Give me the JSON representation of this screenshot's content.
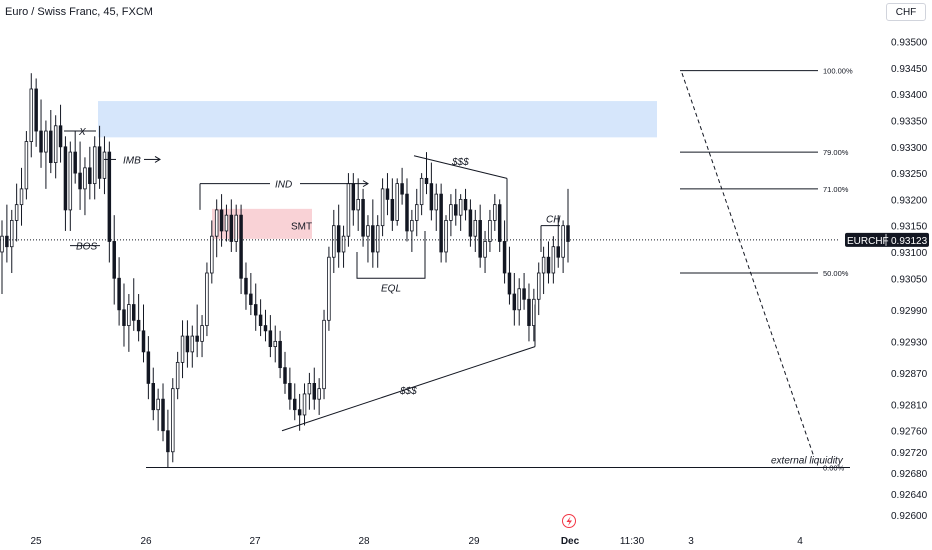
{
  "header": {
    "title": "Euro / Swiss Franc, 45, FXCM",
    "currency_button": "CHF"
  },
  "colors": {
    "up": "#131722",
    "down": "#131722",
    "imbalance_zone": "#d6e6fb",
    "smt_zone": "#f9d2d6",
    "price_tag": "#131722"
  },
  "chart_data": {
    "type": "candlestick",
    "symbol": "EURCHF",
    "last_price": "0.93123",
    "ylim": [
      0.92575,
      0.93545
    ],
    "y_ticks": [
      "0.93500",
      "0.93450",
      "0.93400",
      "0.93350",
      "0.93300",
      "0.93250",
      "0.93200",
      "0.93150",
      "0.93100",
      "0.93050",
      "0.92990",
      "0.92930",
      "0.92870",
      "0.92810",
      "0.92760",
      "0.92720",
      "0.92680",
      "0.92640",
      "0.92600"
    ],
    "x_ticks": [
      "25",
      "26",
      "27",
      "28",
      "29",
      "Dec",
      "11:30",
      "3",
      "4"
    ],
    "fib_levels": [
      {
        "label": "100.00%",
        "value": 0.93445
      },
      {
        "label": "79.00%",
        "value": 0.9329
      },
      {
        "label": "71.00%",
        "value": 0.9322
      },
      {
        "label": "50.00%",
        "value": 0.9306
      },
      {
        "label": "0.00%",
        "value": 0.9269
      }
    ],
    "annotations": {
      "x": "X",
      "imb": "IMB",
      "bos": "BOS",
      "ind": "IND",
      "smt": "SMT",
      "eql": "EQL",
      "dollars_top": "$$$",
      "dollars_bottom": "$$$",
      "ch": "CH",
      "external_liquidity": "external liquidity"
    },
    "candles": [
      [
        0.931,
        0.9316,
        0.9302,
        0.9313
      ],
      [
        0.9313,
        0.9319,
        0.9308,
        0.9311
      ],
      [
        0.9311,
        0.9318,
        0.9306,
        0.9316
      ],
      [
        0.9316,
        0.9323,
        0.9312,
        0.9319
      ],
      [
        0.9319,
        0.9326,
        0.9315,
        0.9322
      ],
      [
        0.9322,
        0.9333,
        0.932,
        0.9331
      ],
      [
        0.9331,
        0.9344,
        0.9328,
        0.9341
      ],
      [
        0.9341,
        0.9343,
        0.933,
        0.9333
      ],
      [
        0.9333,
        0.9339,
        0.9326,
        0.9329
      ],
      [
        0.9329,
        0.9335,
        0.9322,
        0.9333
      ],
      [
        0.9333,
        0.9337,
        0.9325,
        0.9327
      ],
      [
        0.9327,
        0.9336,
        0.9324,
        0.9334
      ],
      [
        0.9334,
        0.9338,
        0.9327,
        0.933
      ],
      [
        0.933,
        0.9332,
        0.9314,
        0.9318
      ],
      [
        0.9318,
        0.9331,
        0.9314,
        0.9329
      ],
      [
        0.9329,
        0.9333,
        0.9323,
        0.9325
      ],
      [
        0.9325,
        0.9331,
        0.9318,
        0.9322
      ],
      [
        0.9322,
        0.9328,
        0.9317,
        0.9326
      ],
      [
        0.9326,
        0.933,
        0.932,
        0.9323
      ],
      [
        0.9323,
        0.9332,
        0.932,
        0.933
      ],
      [
        0.933,
        0.9334,
        0.9322,
        0.9324
      ],
      [
        0.9324,
        0.9332,
        0.9321,
        0.9329
      ],
      [
        0.9329,
        0.9331,
        0.9308,
        0.9312
      ],
      [
        0.9312,
        0.9317,
        0.93,
        0.9305
      ],
      [
        0.9305,
        0.9309,
        0.9296,
        0.9299
      ],
      [
        0.9299,
        0.9304,
        0.9292,
        0.9296
      ],
      [
        0.9296,
        0.9302,
        0.9291,
        0.93
      ],
      [
        0.93,
        0.9305,
        0.9295,
        0.9297
      ],
      [
        0.9297,
        0.9302,
        0.9293,
        0.9295
      ],
      [
        0.9295,
        0.93,
        0.9289,
        0.9291
      ],
      [
        0.9291,
        0.9294,
        0.9282,
        0.9285
      ],
      [
        0.9285,
        0.9288,
        0.9278,
        0.928
      ],
      [
        0.928,
        0.9284,
        0.9276,
        0.9282
      ],
      [
        0.9282,
        0.9285,
        0.9274,
        0.9276
      ],
      [
        0.9276,
        0.928,
        0.9269,
        0.9272
      ],
      [
        0.9272,
        0.9286,
        0.927,
        0.9284
      ],
      [
        0.9284,
        0.9291,
        0.9282,
        0.9289
      ],
      [
        0.9289,
        0.9297,
        0.9286,
        0.9294
      ],
      [
        0.9294,
        0.9297,
        0.9288,
        0.9291
      ],
      [
        0.9291,
        0.9296,
        0.9288,
        0.9294
      ],
      [
        0.9294,
        0.93,
        0.929,
        0.9293
      ],
      [
        0.9293,
        0.9298,
        0.929,
        0.9296
      ],
      [
        0.9296,
        0.9308,
        0.9294,
        0.9306
      ],
      [
        0.9306,
        0.9316,
        0.9304,
        0.9313
      ],
      [
        0.9313,
        0.932,
        0.9309,
        0.9318
      ],
      [
        0.9318,
        0.9321,
        0.9311,
        0.9314
      ],
      [
        0.9314,
        0.9319,
        0.9312,
        0.9317
      ],
      [
        0.9317,
        0.932,
        0.931,
        0.9312
      ],
      [
        0.9312,
        0.9319,
        0.931,
        0.9317
      ],
      [
        0.9317,
        0.9319,
        0.9302,
        0.9305
      ],
      [
        0.9305,
        0.9308,
        0.9299,
        0.9302
      ],
      [
        0.9302,
        0.9306,
        0.9298,
        0.93
      ],
      [
        0.93,
        0.9304,
        0.9295,
        0.9298
      ],
      [
        0.9298,
        0.9301,
        0.9294,
        0.9296
      ],
      [
        0.9296,
        0.9299,
        0.9293,
        0.9295
      ],
      [
        0.9295,
        0.9298,
        0.929,
        0.9292
      ],
      [
        0.9292,
        0.9296,
        0.9289,
        0.9293
      ],
      [
        0.9293,
        0.9295,
        0.9286,
        0.9288
      ],
      [
        0.9288,
        0.9291,
        0.9283,
        0.9285
      ],
      [
        0.9285,
        0.9288,
        0.928,
        0.9282
      ],
      [
        0.9282,
        0.9285,
        0.9278,
        0.928
      ],
      [
        0.928,
        0.9283,
        0.9276,
        0.9279
      ],
      [
        0.9279,
        0.9285,
        0.9277,
        0.9283
      ],
      [
        0.9283,
        0.9287,
        0.928,
        0.9285
      ],
      [
        0.9285,
        0.9288,
        0.928,
        0.9282
      ],
      [
        0.9282,
        0.9286,
        0.9279,
        0.9284
      ],
      [
        0.9284,
        0.9299,
        0.9282,
        0.9297
      ],
      [
        0.9297,
        0.9311,
        0.9295,
        0.9309
      ],
      [
        0.9309,
        0.9318,
        0.9306,
        0.9315
      ],
      [
        0.9315,
        0.9319,
        0.9307,
        0.931
      ],
      [
        0.931,
        0.9315,
        0.9307,
        0.9313
      ],
      [
        0.9313,
        0.9325,
        0.9311,
        0.9323
      ],
      [
        0.9323,
        0.9325,
        0.9315,
        0.9318
      ],
      [
        0.9318,
        0.9324,
        0.9314,
        0.932
      ],
      [
        0.932,
        0.9322,
        0.9311,
        0.9313
      ],
      [
        0.9313,
        0.9317,
        0.9308,
        0.9315
      ],
      [
        0.9315,
        0.932,
        0.9307,
        0.931
      ],
      [
        0.931,
        0.9317,
        0.9307,
        0.9315
      ],
      [
        0.9315,
        0.9324,
        0.9313,
        0.9322
      ],
      [
        0.9322,
        0.9325,
        0.9317,
        0.932
      ],
      [
        0.932,
        0.9324,
        0.9314,
        0.9316
      ],
      [
        0.9316,
        0.9324,
        0.9315,
        0.9323
      ],
      [
        0.9323,
        0.9326,
        0.9319,
        0.9321
      ],
      [
        0.9321,
        0.9324,
        0.9312,
        0.9314
      ],
      [
        0.9314,
        0.9318,
        0.931,
        0.9316
      ],
      [
        0.9316,
        0.9322,
        0.9313,
        0.9319
      ],
      [
        0.9319,
        0.9325,
        0.9317,
        0.9324
      ],
      [
        0.9324,
        0.9329,
        0.9321,
        0.9323
      ],
      [
        0.9323,
        0.9327,
        0.9316,
        0.9318
      ],
      [
        0.9318,
        0.9323,
        0.9314,
        0.9321
      ],
      [
        0.9321,
        0.9323,
        0.9308,
        0.931
      ],
      [
        0.931,
        0.9317,
        0.9308,
        0.9316
      ],
      [
        0.9316,
        0.9321,
        0.9313,
        0.9319
      ],
      [
        0.9319,
        0.9322,
        0.9315,
        0.9317
      ],
      [
        0.9317,
        0.9321,
        0.9314,
        0.932
      ],
      [
        0.932,
        0.9322,
        0.9316,
        0.9318
      ],
      [
        0.9318,
        0.932,
        0.9311,
        0.9313
      ],
      [
        0.9313,
        0.9318,
        0.931,
        0.9316
      ],
      [
        0.9316,
        0.9319,
        0.9307,
        0.9309
      ],
      [
        0.9309,
        0.9314,
        0.9306,
        0.9312
      ],
      [
        0.9312,
        0.9318,
        0.931,
        0.9316
      ],
      [
        0.9316,
        0.9321,
        0.9314,
        0.9319
      ],
      [
        0.9319,
        0.932,
        0.931,
        0.9312
      ],
      [
        0.9312,
        0.9316,
        0.9304,
        0.9306
      ],
      [
        0.9306,
        0.9311,
        0.93,
        0.9302
      ],
      [
        0.9302,
        0.9306,
        0.9296,
        0.9299
      ],
      [
        0.9299,
        0.9305,
        0.9296,
        0.9303
      ],
      [
        0.9303,
        0.9306,
        0.9299,
        0.9301
      ],
      [
        0.9301,
        0.9304,
        0.9293,
        0.9296
      ],
      [
        0.9296,
        0.9303,
        0.9293,
        0.9301
      ],
      [
        0.9301,
        0.9308,
        0.9298,
        0.9306
      ],
      [
        0.9306,
        0.9311,
        0.9302,
        0.9309
      ],
      [
        0.9309,
        0.9312,
        0.9304,
        0.9306
      ],
      [
        0.9306,
        0.9313,
        0.9304,
        0.9311
      ],
      [
        0.9311,
        0.9317,
        0.9307,
        0.9309
      ],
      [
        0.9309,
        0.9316,
        0.9306,
        0.9315
      ],
      [
        0.9315,
        0.9322,
        0.9308,
        0.9312
      ]
    ]
  }
}
